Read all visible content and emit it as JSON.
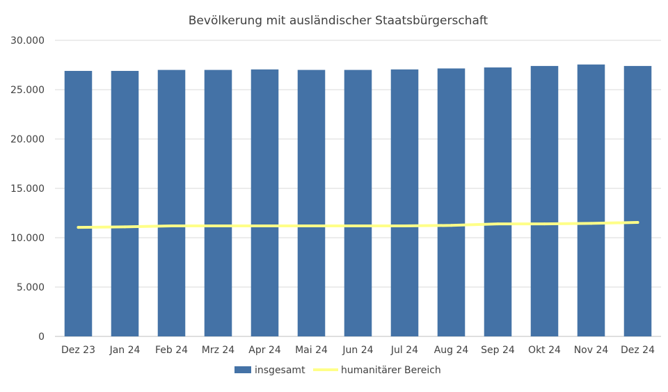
{
  "chart_data": {
    "type": "bar",
    "title": "Bevölkerung mit ausländischer Staatsbürgerschaft",
    "categories": [
      "Dez 23",
      "Jan 24",
      "Feb 24",
      "Mrz 24",
      "Apr 24",
      "Mai 24",
      "Jun 24",
      "Jul 24",
      "Aug 24",
      "Sep 24",
      "Okt 24",
      "Nov 24",
      "Dez 24"
    ],
    "series": [
      {
        "name": "insgesamt",
        "kind": "bar",
        "color": "#4472a6",
        "values": [
          26900,
          26900,
          27000,
          27000,
          27050,
          27000,
          27000,
          27050,
          27150,
          27250,
          27400,
          27550,
          27400
        ]
      },
      {
        "name": "humanitärer Bereich",
        "kind": "line",
        "color": "#ffff88",
        "values": [
          11050,
          11100,
          11200,
          11200,
          11200,
          11200,
          11200,
          11200,
          11250,
          11400,
          11400,
          11450,
          11550
        ]
      }
    ],
    "ylim": [
      0,
      30000
    ],
    "yticks": [
      0,
      5000,
      10000,
      15000,
      20000,
      25000,
      30000
    ],
    "ytick_labels": [
      "0",
      "5.000",
      "10.000",
      "15.000",
      "20.000",
      "25.000",
      "30.000"
    ],
    "grid": true,
    "legend": "bottom"
  }
}
